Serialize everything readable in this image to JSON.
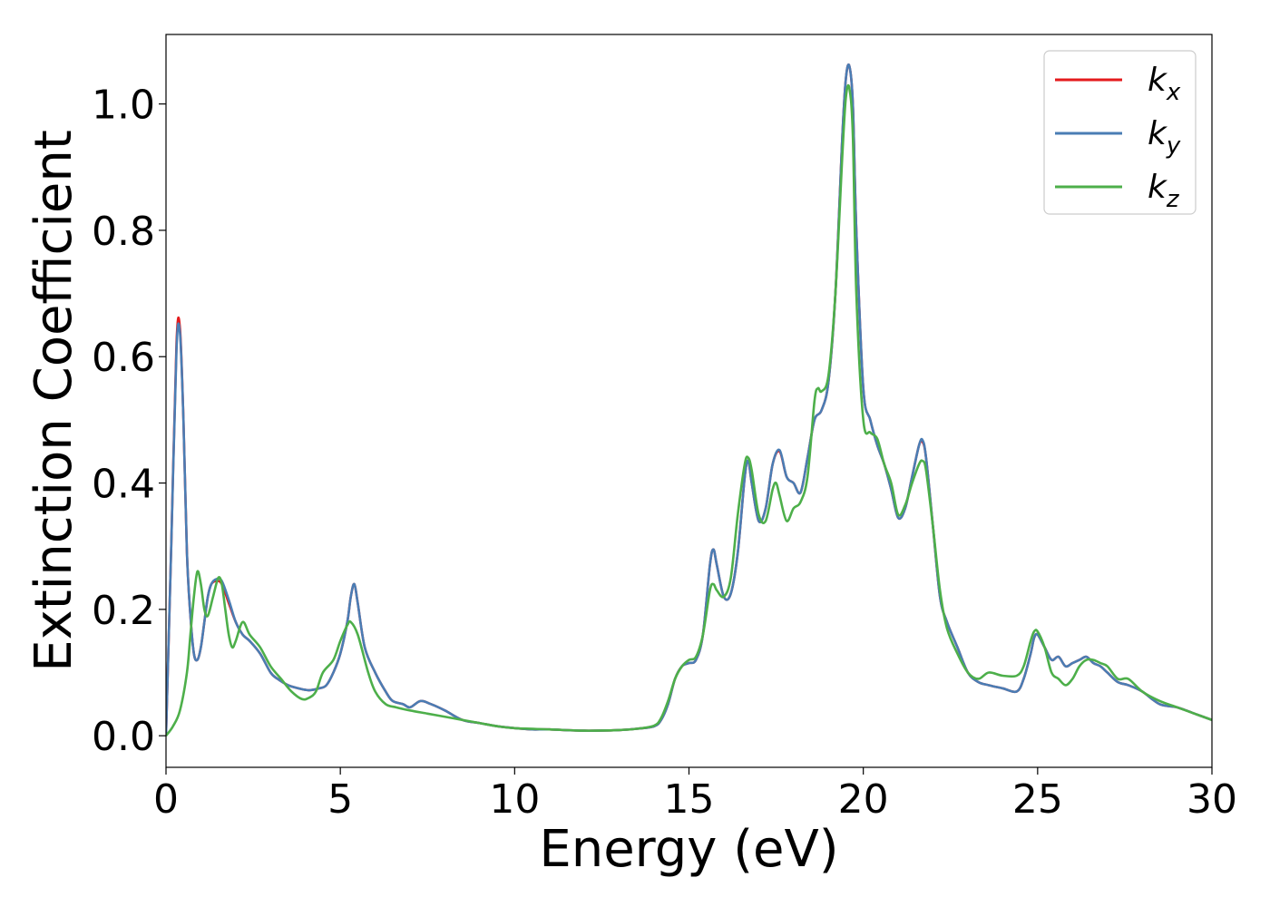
{
  "chart_data": {
    "type": "line",
    "xlabel": "Energy (eV)",
    "ylabel": "Extinction Coefficient",
    "xlim": [
      0,
      30
    ],
    "ylim": [
      -0.05,
      1.11
    ],
    "xticks": [
      "0",
      "5",
      "10",
      "15",
      "20",
      "25",
      "30"
    ],
    "yticks": [
      "0.0",
      "0.2",
      "0.4",
      "0.6",
      "0.8",
      "1.0"
    ],
    "legend_position": "top-right",
    "grid": false,
    "series": [
      {
        "name": "k_x",
        "label_main": "k",
        "label_sub": "x",
        "color": "#e41a1c",
        "x": [
          0,
          0.15,
          0.3,
          0.4,
          0.5,
          0.6,
          0.7,
          0.8,
          0.9,
          1.0,
          1.1,
          1.2,
          1.3,
          1.45,
          1.6,
          1.8,
          2.0,
          2.2,
          2.4,
          2.7,
          3.0,
          3.2,
          3.5,
          3.8,
          4.1,
          4.4,
          4.6,
          4.8,
          5.0,
          5.2,
          5.3,
          5.4,
          5.5,
          5.7,
          6.0,
          6.3,
          6.5,
          6.8,
          7.0,
          7.3,
          7.6,
          8.0,
          8.5,
          9.0,
          9.5,
          10.0,
          10.5,
          11.0,
          12.0,
          13.0,
          13.5,
          14.0,
          14.2,
          14.4,
          14.6,
          14.8,
          15.0,
          15.2,
          15.4,
          15.6,
          15.7,
          15.8,
          16.0,
          16.2,
          16.4,
          16.6,
          16.7,
          16.8,
          17.0,
          17.2,
          17.4,
          17.6,
          17.8,
          18.0,
          18.2,
          18.4,
          18.6,
          18.8,
          19.0,
          19.2,
          19.4,
          19.5,
          19.6,
          19.7,
          19.8,
          20.0,
          20.2,
          20.4,
          20.6,
          20.8,
          21.0,
          21.2,
          21.4,
          21.6,
          21.7,
          21.8,
          22.0,
          22.2,
          22.4,
          22.7,
          23.0,
          23.3,
          23.6,
          24.0,
          24.4,
          24.6,
          24.8,
          24.9,
          25.0,
          25.2,
          25.4,
          25.6,
          25.8,
          26.0,
          26.2,
          26.4,
          26.6,
          26.8,
          27.0,
          27.3,
          27.6,
          28.0,
          28.5,
          29.0,
          29.5,
          30.0
        ],
        "y": [
          0.0,
          0.3,
          0.62,
          0.645,
          0.5,
          0.29,
          0.19,
          0.13,
          0.12,
          0.14,
          0.18,
          0.22,
          0.24,
          0.245,
          0.24,
          0.21,
          0.18,
          0.16,
          0.15,
          0.13,
          0.1,
          0.09,
          0.08,
          0.075,
          0.072,
          0.075,
          0.08,
          0.1,
          0.13,
          0.18,
          0.22,
          0.24,
          0.21,
          0.14,
          0.1,
          0.07,
          0.055,
          0.05,
          0.045,
          0.055,
          0.05,
          0.04,
          0.025,
          0.02,
          0.015,
          0.012,
          0.01,
          0.01,
          0.008,
          0.009,
          0.011,
          0.015,
          0.025,
          0.05,
          0.09,
          0.11,
          0.115,
          0.12,
          0.16,
          0.27,
          0.295,
          0.27,
          0.22,
          0.225,
          0.29,
          0.41,
          0.435,
          0.4,
          0.34,
          0.36,
          0.43,
          0.45,
          0.41,
          0.4,
          0.385,
          0.44,
          0.5,
          0.515,
          0.56,
          0.7,
          0.95,
          1.04,
          1.06,
          1.0,
          0.8,
          0.55,
          0.5,
          0.46,
          0.43,
          0.39,
          0.345,
          0.36,
          0.41,
          0.46,
          0.465,
          0.44,
          0.33,
          0.22,
          0.18,
          0.14,
          0.1,
          0.085,
          0.08,
          0.075,
          0.07,
          0.09,
          0.13,
          0.155,
          0.16,
          0.14,
          0.12,
          0.125,
          0.11,
          0.115,
          0.12,
          0.125,
          0.115,
          0.11,
          0.1,
          0.085,
          0.08,
          0.07,
          0.05,
          0.045,
          0.035,
          0.025
        ]
      },
      {
        "name": "k_y",
        "label_main": "k",
        "label_sub": "y",
        "color": "#4a7db4",
        "x": [
          0,
          0.15,
          0.3,
          0.4,
          0.5,
          0.6,
          0.7,
          0.8,
          0.9,
          1.0,
          1.1,
          1.2,
          1.3,
          1.45,
          1.6,
          1.8,
          2.0,
          2.2,
          2.4,
          2.7,
          3.0,
          3.2,
          3.5,
          3.8,
          4.1,
          4.4,
          4.6,
          4.8,
          5.0,
          5.2,
          5.3,
          5.4,
          5.5,
          5.7,
          6.0,
          6.3,
          6.5,
          6.8,
          7.0,
          7.3,
          7.6,
          8.0,
          8.5,
          9.0,
          9.5,
          10.0,
          10.5,
          11.0,
          12.0,
          13.0,
          13.5,
          14.0,
          14.2,
          14.4,
          14.6,
          14.8,
          15.0,
          15.2,
          15.4,
          15.6,
          15.7,
          15.8,
          16.0,
          16.2,
          16.4,
          16.6,
          16.7,
          16.8,
          17.0,
          17.2,
          17.4,
          17.6,
          17.8,
          18.0,
          18.2,
          18.4,
          18.6,
          18.8,
          19.0,
          19.2,
          19.4,
          19.5,
          19.6,
          19.7,
          19.8,
          20.0,
          20.2,
          20.4,
          20.6,
          20.8,
          21.0,
          21.2,
          21.4,
          21.6,
          21.7,
          21.8,
          22.0,
          22.2,
          22.4,
          22.7,
          23.0,
          23.3,
          23.6,
          24.0,
          24.4,
          24.6,
          24.8,
          24.9,
          25.0,
          25.2,
          25.4,
          25.6,
          25.8,
          26.0,
          26.2,
          26.4,
          26.6,
          26.8,
          27.0,
          27.3,
          27.6,
          28.0,
          28.5,
          29.0,
          29.5,
          30.0
        ],
        "y": [
          0.0,
          0.3,
          0.61,
          0.638,
          0.5,
          0.29,
          0.19,
          0.13,
          0.12,
          0.14,
          0.18,
          0.22,
          0.24,
          0.248,
          0.245,
          0.215,
          0.18,
          0.16,
          0.15,
          0.13,
          0.1,
          0.09,
          0.08,
          0.075,
          0.072,
          0.075,
          0.08,
          0.1,
          0.13,
          0.18,
          0.22,
          0.24,
          0.21,
          0.14,
          0.1,
          0.07,
          0.055,
          0.05,
          0.045,
          0.055,
          0.05,
          0.04,
          0.025,
          0.02,
          0.015,
          0.012,
          0.01,
          0.01,
          0.008,
          0.009,
          0.011,
          0.015,
          0.025,
          0.05,
          0.09,
          0.11,
          0.115,
          0.12,
          0.16,
          0.27,
          0.295,
          0.27,
          0.22,
          0.225,
          0.29,
          0.41,
          0.435,
          0.4,
          0.34,
          0.36,
          0.43,
          0.452,
          0.41,
          0.4,
          0.385,
          0.44,
          0.5,
          0.515,
          0.56,
          0.7,
          0.95,
          1.04,
          1.06,
          1.0,
          0.8,
          0.55,
          0.5,
          0.46,
          0.43,
          0.39,
          0.345,
          0.36,
          0.41,
          0.46,
          0.468,
          0.44,
          0.33,
          0.22,
          0.18,
          0.14,
          0.1,
          0.085,
          0.08,
          0.075,
          0.07,
          0.09,
          0.13,
          0.155,
          0.16,
          0.14,
          0.12,
          0.125,
          0.11,
          0.115,
          0.12,
          0.125,
          0.115,
          0.11,
          0.1,
          0.085,
          0.08,
          0.07,
          0.05,
          0.045,
          0.035,
          0.025
        ]
      },
      {
        "name": "k_z",
        "label_main": "k",
        "label_sub": "z",
        "color": "#4daf4a",
        "x": [
          0,
          0.2,
          0.4,
          0.6,
          0.7,
          0.8,
          0.9,
          1.0,
          1.1,
          1.2,
          1.35,
          1.5,
          1.6,
          1.7,
          1.8,
          1.9,
          2.0,
          2.2,
          2.4,
          2.7,
          3.0,
          3.3,
          3.6,
          3.9,
          4.1,
          4.3,
          4.5,
          4.8,
          5.0,
          5.2,
          5.3,
          5.5,
          5.8,
          6.0,
          6.3,
          6.6,
          7.0,
          7.5,
          8.0,
          8.5,
          9.0,
          9.5,
          10.0,
          11.0,
          12.0,
          13.0,
          13.5,
          14.0,
          14.2,
          14.4,
          14.6,
          14.8,
          15.0,
          15.2,
          15.4,
          15.6,
          15.7,
          15.8,
          16.0,
          16.2,
          16.4,
          16.6,
          16.7,
          16.8,
          17.0,
          17.2,
          17.4,
          17.5,
          17.6,
          17.8,
          18.0,
          18.2,
          18.4,
          18.6,
          18.7,
          18.8,
          19.0,
          19.2,
          19.4,
          19.5,
          19.6,
          19.7,
          19.8,
          20.0,
          20.2,
          20.4,
          20.6,
          20.8,
          21.0,
          21.2,
          21.4,
          21.6,
          21.7,
          21.8,
          22.0,
          22.2,
          22.4,
          22.7,
          23.0,
          23.3,
          23.6,
          24.0,
          24.4,
          24.6,
          24.8,
          24.9,
          25.0,
          25.2,
          25.4,
          25.6,
          25.8,
          26.0,
          26.2,
          26.4,
          26.6,
          26.8,
          27.0,
          27.3,
          27.6,
          28.0,
          28.5,
          29.0,
          29.5,
          30.0
        ],
        "y": [
          0.0,
          0.015,
          0.04,
          0.1,
          0.16,
          0.22,
          0.26,
          0.24,
          0.2,
          0.19,
          0.22,
          0.25,
          0.24,
          0.2,
          0.16,
          0.14,
          0.15,
          0.18,
          0.16,
          0.14,
          0.11,
          0.09,
          0.07,
          0.058,
          0.06,
          0.07,
          0.1,
          0.12,
          0.15,
          0.175,
          0.18,
          0.16,
          0.1,
          0.07,
          0.05,
          0.045,
          0.04,
          0.035,
          0.03,
          0.025,
          0.02,
          0.015,
          0.012,
          0.01,
          0.008,
          0.009,
          0.011,
          0.016,
          0.028,
          0.055,
          0.09,
          0.11,
          0.12,
          0.125,
          0.16,
          0.23,
          0.24,
          0.23,
          0.22,
          0.25,
          0.35,
          0.43,
          0.44,
          0.42,
          0.35,
          0.34,
          0.39,
          0.4,
          0.38,
          0.34,
          0.36,
          0.37,
          0.41,
          0.53,
          0.55,
          0.545,
          0.57,
          0.7,
          0.92,
          1.01,
          1.025,
          0.95,
          0.7,
          0.5,
          0.48,
          0.47,
          0.43,
          0.4,
          0.35,
          0.365,
          0.4,
          0.43,
          0.435,
          0.42,
          0.33,
          0.23,
          0.17,
          0.13,
          0.1,
          0.09,
          0.1,
          0.095,
          0.095,
          0.11,
          0.15,
          0.165,
          0.165,
          0.14,
          0.1,
          0.09,
          0.08,
          0.09,
          0.11,
          0.12,
          0.12,
          0.115,
          0.11,
          0.09,
          0.09,
          0.07,
          0.055,
          0.045,
          0.035,
          0.025
        ]
      }
    ]
  }
}
